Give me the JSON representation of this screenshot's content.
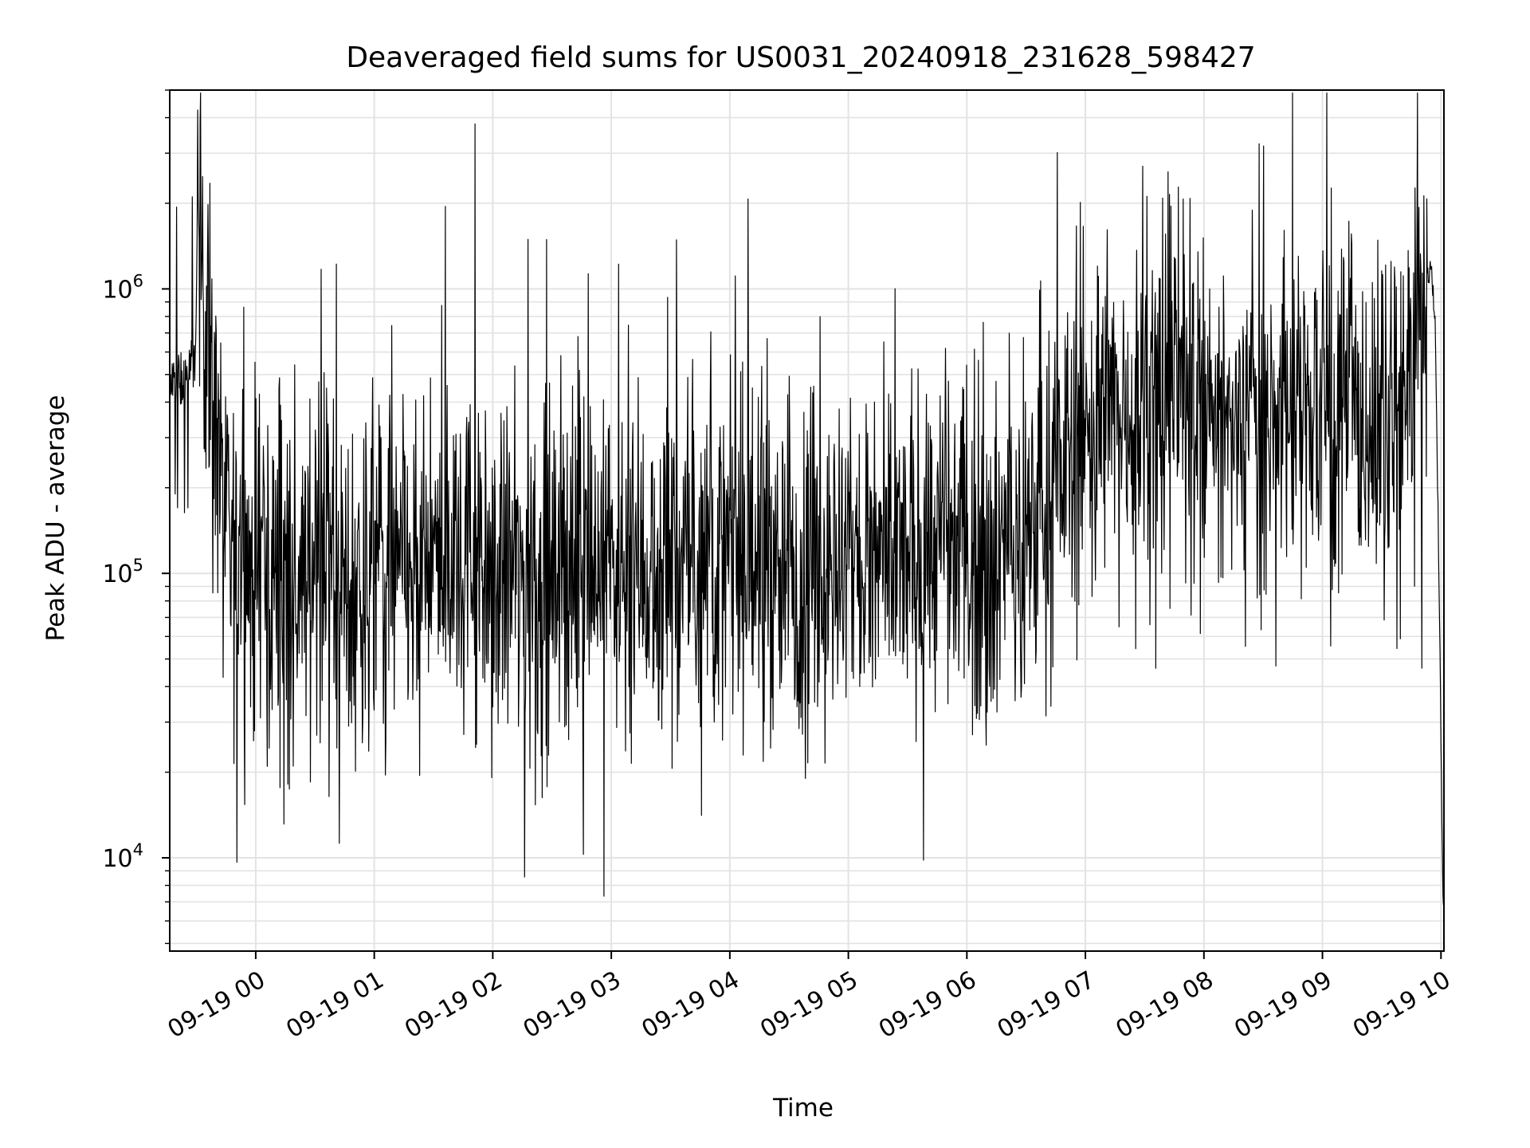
{
  "chart_data": {
    "type": "line",
    "title": "Deaveraged field sums for US0031_20240918_231628_598427",
    "xlabel": "Time",
    "ylabel": "Peak ADU - average",
    "y_scale": "log",
    "ylim": [
      4700,
      5000000
    ],
    "xlim": [
      "2024-09-18 23:16:28",
      "2024-09-19 10:01:30"
    ],
    "x_tick_labels": [
      "09-19 00",
      "09-19 01",
      "09-19 02",
      "09-19 03",
      "09-19 04",
      "09-19 05",
      "09-19 06",
      "09-19 07",
      "09-19 08",
      "09-19 09",
      "09-19 10"
    ],
    "x_ticks": [
      "2024-09-19 00:00",
      "2024-09-19 01:00",
      "2024-09-19 02:00",
      "2024-09-19 03:00",
      "2024-09-19 04:00",
      "2024-09-19 05:00",
      "2024-09-19 06:00",
      "2024-09-19 07:00",
      "2024-09-19 08:00",
      "2024-09-19 09:00",
      "2024-09-19 10:00"
    ],
    "y_tick_labels": [
      {
        "value": 10000,
        "base": "10",
        "exp": "4"
      },
      {
        "value": 100000,
        "base": "10",
        "exp": "5"
      },
      {
        "value": 1000000,
        "base": "10",
        "exp": "6"
      }
    ],
    "grid": true,
    "line_color": "#000000",
    "series": [
      {
        "x": [
          "2024-09-18 23:16:28",
          "2024-09-18 23:20",
          "2024-09-18 23:25",
          "2024-09-18 23:29",
          "2024-09-18 23:31",
          "2024-09-18 23:33",
          "2024-09-18 23:35",
          "2024-09-18 23:38",
          "2024-09-18 23:41",
          "2024-09-18 23:43",
          "2024-09-18 23:45",
          "2024-09-18 23:48",
          "2024-09-18 23:55",
          "2024-09-19 00:10",
          "2024-09-19 00:20",
          "2024-09-19 00:35",
          "2024-09-19 00:50",
          "2024-09-19 01:05",
          "2024-09-19 01:20",
          "2024-09-19 01:35",
          "2024-09-19 01:45",
          "2024-09-19 01:51",
          "2024-09-19 02:10",
          "2024-09-19 02:30",
          "2024-09-19 02:50",
          "2024-09-19 03:10",
          "2024-09-19 03:30",
          "2024-09-19 03:50",
          "2024-09-19 04:10",
          "2024-09-19 04:30",
          "2024-09-19 04:50",
          "2024-09-19 05:10",
          "2024-09-19 05:30",
          "2024-09-19 05:50",
          "2024-09-19 06:10",
          "2024-09-19 06:25",
          "2024-09-19 06:40",
          "2024-09-19 06:55",
          "2024-09-19 07:10",
          "2024-09-19 07:25",
          "2024-09-19 07:35",
          "2024-09-19 07:45",
          "2024-09-19 08:00",
          "2024-09-19 08:15",
          "2024-09-19 08:30",
          "2024-09-19 08:45",
          "2024-09-19 09:00",
          "2024-09-19 09:15",
          "2024-09-19 09:30",
          "2024-09-19 09:40",
          "2024-09-19 09:48",
          "2024-09-19 09:52",
          "2024-09-19 09:55",
          "2024-09-19 09:57",
          "2024-09-19 09:59",
          "2024-09-19 10:00",
          "2024-09-19 10:01"
        ],
        "y": [
          450000,
          480000,
          470000,
          600000,
          1100000,
          1300000,
          800000,
          500000,
          300000,
          180000,
          120000,
          110000,
          105000,
          100000,
          110000,
          105000,
          100000,
          105000,
          95000,
          110000,
          120000,
          110000,
          100000,
          100000,
          115000,
          110000,
          105000,
          115000,
          110000,
          100000,
          110000,
          105000,
          110000,
          130000,
          110000,
          120000,
          180000,
          300000,
          350000,
          400000,
          450000,
          500000,
          350000,
          300000,
          350000,
          380000,
          400000,
          350000,
          320000,
          350000,
          700000,
          1000000,
          1200000,
          800000,
          100000,
          25000,
          7000
        ]
      }
    ],
    "annotations": [
      {
        "x": "2024-09-19 01:51",
        "y": 3800000,
        "label": ""
      },
      {
        "x": "2024-09-19 01:36",
        "y": 1950000,
        "label": ""
      },
      {
        "x": "2024-09-19 07:29",
        "y": 2700000,
        "label": ""
      },
      {
        "x": "2024-09-19 00:19",
        "y": 21000,
        "label": ""
      },
      {
        "x": "2024-09-19 02:13",
        "y": 29000,
        "label": ""
      }
    ]
  }
}
